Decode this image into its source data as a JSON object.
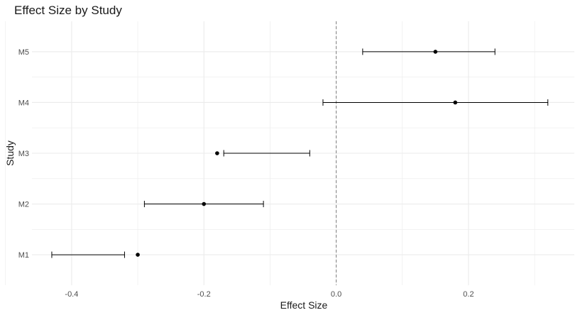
{
  "chart_data": {
    "type": "forest",
    "title": "Effect Size by Study",
    "xlabel": "Effect Size",
    "ylabel": "Study",
    "xlim": [
      -0.46,
      0.36
    ],
    "x_ticks": [
      -0.4,
      -0.2,
      0.0,
      0.2
    ],
    "x_tick_labels": [
      "-0.4",
      "-0.2",
      "0.0",
      "0.2"
    ],
    "reference_line": 0.0,
    "grid": true,
    "studies": [
      {
        "label": "M1",
        "estimate": -0.3,
        "ci_low": -0.43,
        "ci_high": -0.32
      },
      {
        "label": "M2",
        "estimate": -0.2,
        "ci_low": -0.29,
        "ci_high": -0.11
      },
      {
        "label": "M3",
        "estimate": -0.18,
        "ci_low": -0.17,
        "ci_high": -0.04
      },
      {
        "label": "M4",
        "estimate": 0.18,
        "ci_low": -0.02,
        "ci_high": 0.32
      },
      {
        "label": "M5",
        "estimate": 0.15,
        "ci_low": 0.04,
        "ci_high": 0.24
      }
    ]
  }
}
